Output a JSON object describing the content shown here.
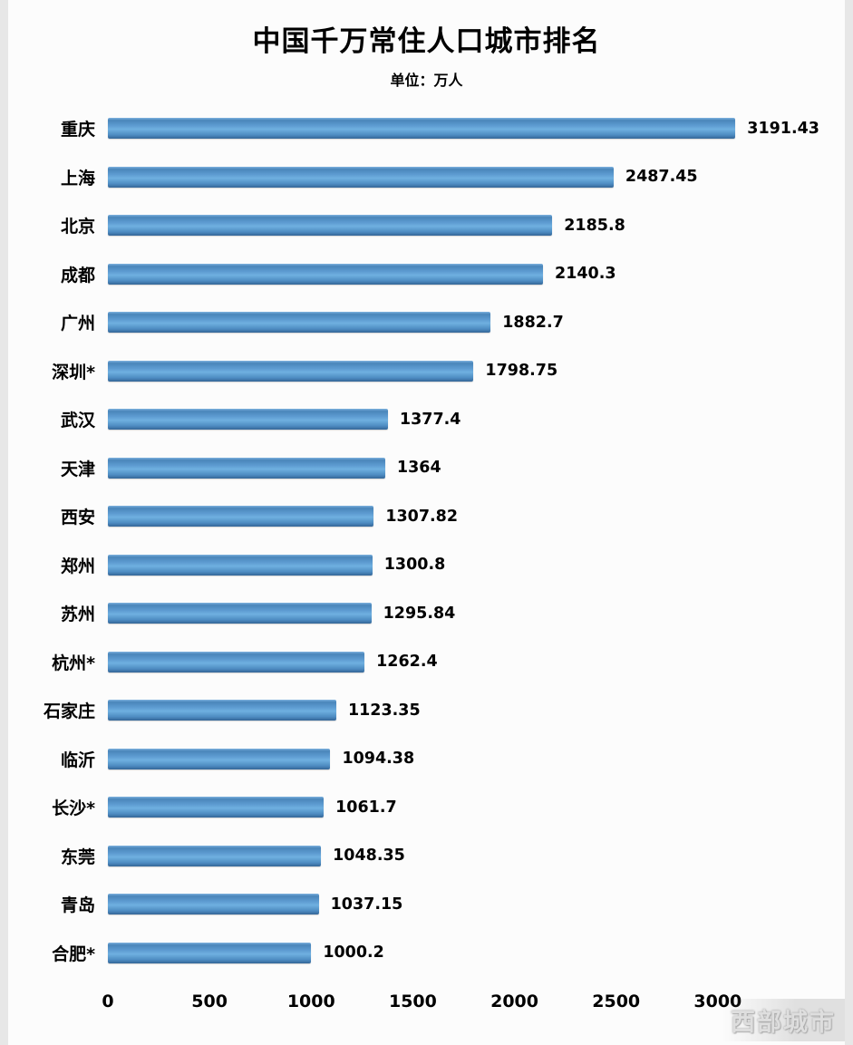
{
  "title": "中国千万常住人口城市排名",
  "subtitle": "单位：万人",
  "watermark": "西部城市",
  "colors": {
    "bar_main": "#5e9cd2",
    "bar_dark": "#346697",
    "bar_light": "#7fb3e0",
    "text": "#000000",
    "background": "#fcfcfc"
  },
  "chart_data": {
    "type": "bar",
    "orientation": "horizontal",
    "title": "中国千万常住人口城市排名",
    "unit": "万人",
    "categories": [
      "重庆",
      "上海",
      "北京",
      "成都",
      "广州",
      "深圳*",
      "武汉",
      "天津",
      "西安",
      "郑州",
      "苏州",
      "杭州*",
      "石家庄",
      "临沂",
      "长沙*",
      "东莞",
      "青岛",
      "合肥*"
    ],
    "values": [
      3191.43,
      2487.45,
      2185.8,
      2140.3,
      1882.7,
      1798.75,
      1377.4,
      1364,
      1307.82,
      1300.8,
      1295.84,
      1262.4,
      1123.35,
      1094.38,
      1061.7,
      1048.35,
      1037.15,
      1000.2
    ],
    "value_labels": [
      "3191.43",
      "2487.45",
      "2185.8",
      "2140.3",
      "1882.7",
      "1798.75",
      "1377.4",
      "1364",
      "1307.82",
      "1300.8",
      "1295.84",
      "1262.4",
      "1123.35",
      "1094.38",
      "1061.7",
      "1048.35",
      "1037.15",
      "1000.2"
    ],
    "x_ticks": [
      0,
      500,
      1000,
      1500,
      2000,
      2500,
      3000
    ],
    "xlim": [
      0,
      3500
    ],
    "grid": false,
    "legend": "none"
  }
}
